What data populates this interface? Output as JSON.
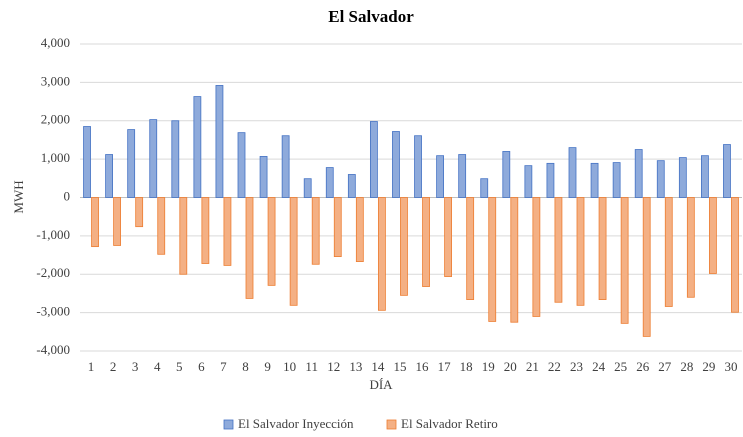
{
  "chart_data": {
    "type": "bar",
    "title": "El Salvador",
    "x_label": "DÍA",
    "y_label": "MWH",
    "categories": [
      "1",
      "2",
      "3",
      "4",
      "5",
      "6",
      "7",
      "8",
      "9",
      "10",
      "11",
      "12",
      "13",
      "14",
      "15",
      "16",
      "17",
      "18",
      "19",
      "20",
      "21",
      "22",
      "23",
      "24",
      "25",
      "26",
      "27",
      "28",
      "29",
      "30"
    ],
    "series": [
      {
        "name": "El Salvador Inyección",
        "color": "#8eaadb",
        "border_color": "#4472c4",
        "values": [
          1850,
          1120,
          1770,
          2030,
          2000,
          2630,
          2920,
          1690,
          1070,
          1610,
          490,
          780,
          600,
          1980,
          1720,
          1610,
          1090,
          1120,
          490,
          1200,
          830,
          890,
          1300,
          890,
          910,
          1250,
          960,
          1040,
          1090,
          1380
        ]
      },
      {
        "name": "El Salvador Retiro",
        "color": "#f4b084",
        "border_color": "#ed7d31",
        "values": [
          -1280,
          -1250,
          -760,
          -1480,
          -2000,
          -1720,
          -1770,
          -2630,
          -2290,
          -2810,
          -1740,
          -1540,
          -1670,
          -2940,
          -2550,
          -2320,
          -2060,
          -2660,
          -3230,
          -3250,
          -3100,
          -2730,
          -2810,
          -2660,
          -3280,
          -3620,
          -2840,
          -2600,
          -1980,
          -2990
        ]
      }
    ],
    "ylim": [
      -4000,
      4000
    ],
    "yticks": [
      {
        "value": -4000,
        "label": "-4,000"
      },
      {
        "value": -3000,
        "label": "-3,000"
      },
      {
        "value": -2000,
        "label": "-2,000"
      },
      {
        "value": -1000,
        "label": "-1,000"
      },
      0,
      {
        "value": 1000,
        "label": "1,000"
      },
      {
        "value": 2000,
        "label": "2,000"
      },
      {
        "value": 3000,
        "label": "3,000"
      },
      {
        "value": 4000,
        "label": "4,000"
      }
    ],
    "grid": true,
    "legend": "bottom"
  }
}
